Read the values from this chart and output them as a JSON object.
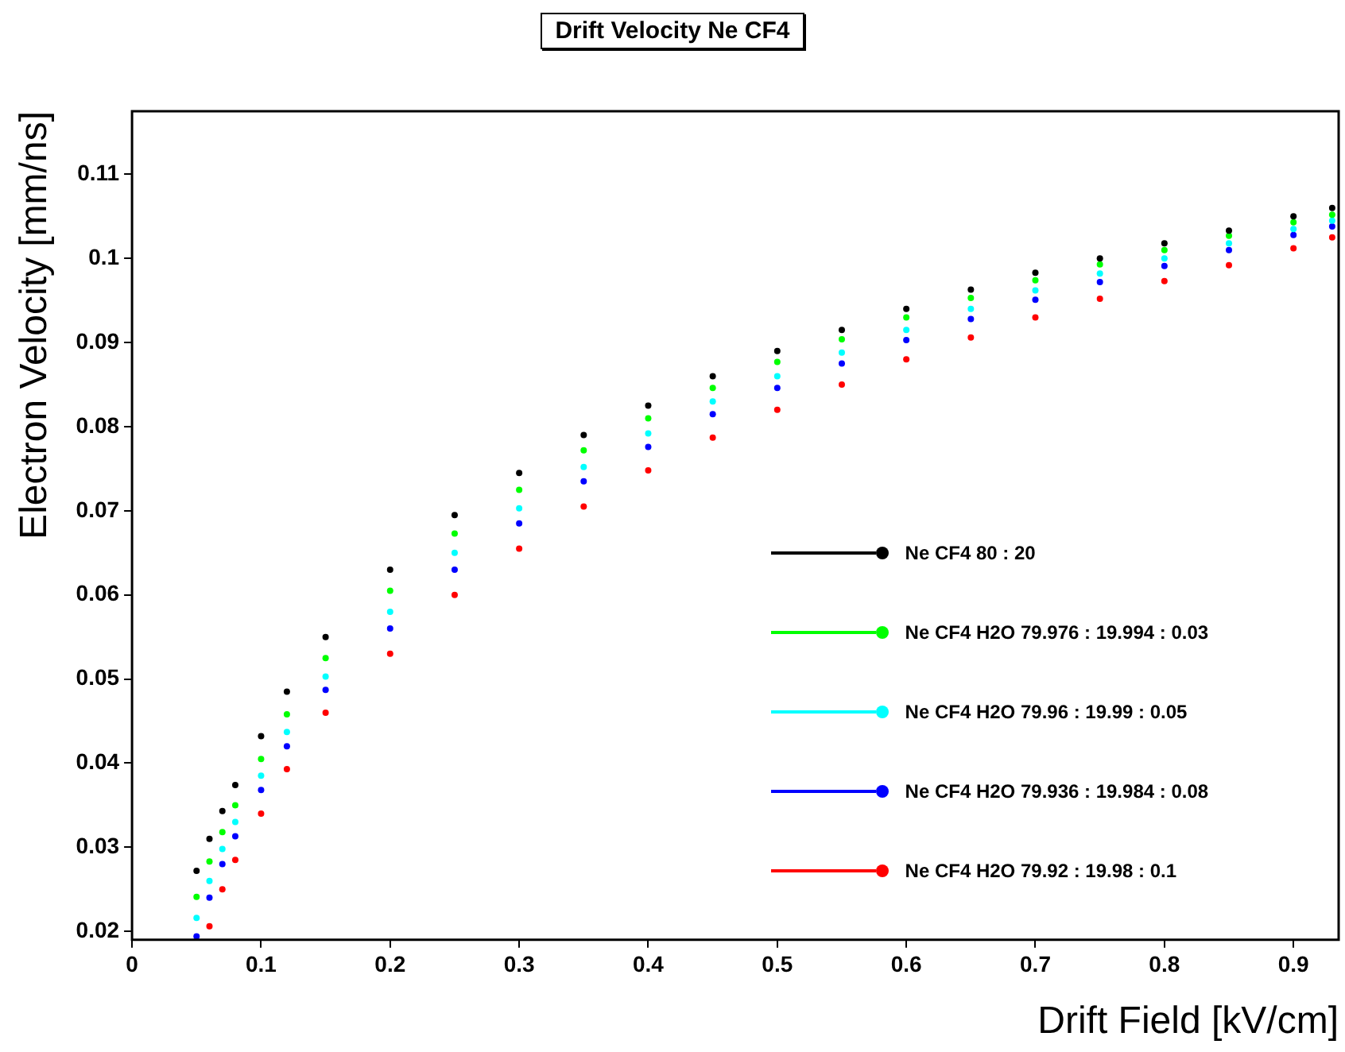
{
  "chart_data": {
    "type": "scatter",
    "title": "Drift Velocity Ne CF4",
    "xlabel": "Drift Field [kV/cm]",
    "ylabel": "Electron Velocity [mm/ns]",
    "x": [
      0.05,
      0.06,
      0.07,
      0.08,
      0.1,
      0.12,
      0.15,
      0.2,
      0.25,
      0.3,
      0.35,
      0.4,
      0.45,
      0.5,
      0.55,
      0.6,
      0.65,
      0.7,
      0.75,
      0.8,
      0.85,
      0.9,
      0.93
    ],
    "series": [
      {
        "name": "Ne CF4 80 : 20",
        "color": "#000000",
        "values": [
          0.0272,
          0.031,
          0.0343,
          0.0374,
          0.0432,
          0.0485,
          0.055,
          0.063,
          0.0695,
          0.0745,
          0.079,
          0.0825,
          0.086,
          0.089,
          0.0915,
          0.094,
          0.0963,
          0.0983,
          0.1,
          0.1018,
          0.1033,
          0.105,
          0.106
        ]
      },
      {
        "name": "Ne CF4 H2O 79.976 : 19.994 : 0.03",
        "color": "#00ff00",
        "values": [
          0.0241,
          0.0283,
          0.0318,
          0.035,
          0.0405,
          0.0458,
          0.0525,
          0.0605,
          0.0673,
          0.0725,
          0.0772,
          0.081,
          0.0846,
          0.0877,
          0.0904,
          0.093,
          0.0953,
          0.0974,
          0.0993,
          0.101,
          0.1027,
          0.1043,
          0.1052
        ]
      },
      {
        "name": "Ne CF4 H2O 79.96 : 19.99 : 0.05",
        "color": "#00ffff",
        "values": [
          0.0216,
          0.026,
          0.0298,
          0.033,
          0.0385,
          0.0437,
          0.0503,
          0.058,
          0.065,
          0.0703,
          0.0752,
          0.0792,
          0.083,
          0.086,
          0.0888,
          0.0915,
          0.094,
          0.0962,
          0.0982,
          0.1,
          0.1018,
          0.1035,
          0.1045
        ]
      },
      {
        "name": "Ne CF4 H2O 79.936 : 19.984 : 0.08",
        "color": "#0000ff",
        "values": [
          0.0194,
          0.024,
          0.028,
          0.0313,
          0.0368,
          0.042,
          0.0487,
          0.056,
          0.063,
          0.0685,
          0.0735,
          0.0776,
          0.0815,
          0.0846,
          0.0875,
          0.0903,
          0.0928,
          0.0951,
          0.0972,
          0.0991,
          0.101,
          0.1028,
          0.1038
        ]
      },
      {
        "name": "Ne CF4 H2O 79.92 : 19.98 : 0.1",
        "color": "#ff0000",
        "values": [
          null,
          0.0206,
          0.025,
          0.0285,
          0.034,
          0.0393,
          0.046,
          0.053,
          0.06,
          0.0655,
          0.0705,
          0.0748,
          0.0787,
          0.082,
          0.085,
          0.088,
          0.0906,
          0.093,
          0.0952,
          0.0973,
          0.0992,
          0.1012,
          0.1025
        ]
      }
    ],
    "xlim": [
      0,
      0.935
    ],
    "xticks": [
      0,
      0.1,
      0.2,
      0.3,
      0.4,
      0.5,
      0.6,
      0.7,
      0.8,
      0.9
    ],
    "ylim": [
      0.019,
      0.1175
    ],
    "yticks": [
      0.02,
      0.03,
      0.04,
      0.05,
      0.06,
      0.07,
      0.08,
      0.09,
      0.1,
      0.11
    ],
    "grid": false,
    "legend": "bottom right",
    "marker": "circle"
  }
}
